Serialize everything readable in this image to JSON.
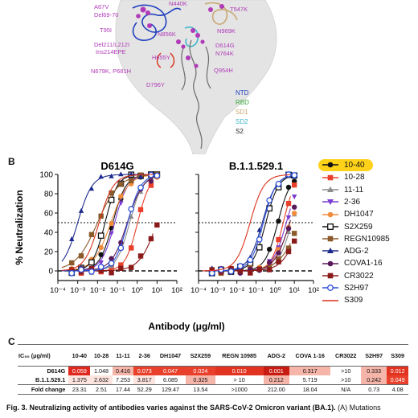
{
  "panel_a": {
    "mutations": [
      "A67V",
      "Del69-70",
      "T95I",
      "Del211/L212I",
      "Ins214EPE",
      "N679K, P681H",
      "D796Y",
      "N856K",
      "H655Y",
      "D614G",
      "N764K",
      "N969K",
      "Q954H",
      "T547K",
      "N440K"
    ],
    "domains": [
      {
        "name": "NTD",
        "color": "#1f3fbf"
      },
      {
        "name": "RBD",
        "color": "#3aa83a"
      },
      {
        "name": "SD1",
        "color": "#c9a873"
      },
      {
        "name": "SD2",
        "color": "#3fb6c8"
      },
      {
        "name": "S2",
        "color": "#222222"
      }
    ]
  },
  "panel_b_letter": "B",
  "panel_c_letter": "C",
  "chart_data": [
    {
      "type": "line",
      "title": "D614G",
      "xlabel": "Antibody (μg/ml)",
      "ylabel": "% Neutralization",
      "xscale": "log",
      "xlim": [
        0.0001,
        100
      ],
      "ylim": [
        -10,
        100
      ],
      "x_ticks": [
        "10⁻⁴",
        "10⁻³",
        "10⁻²",
        "10⁻¹",
        "10⁰",
        "10¹",
        "10²"
      ],
      "y_ticks": [
        "0",
        "20",
        "40",
        "60",
        "80",
        "100"
      ],
      "reference_lines": [
        0,
        50
      ],
      "series": [
        {
          "name": "10-40",
          "color": "#111111",
          "marker": "circle",
          "ic50": 0.059,
          "hill": 1.3
        },
        {
          "name": "10-28",
          "color": "#e8402b",
          "marker": "square",
          "ic50": 1.048,
          "hill": 1.4
        },
        {
          "name": "11-11",
          "color": "#8c8c8c",
          "marker": "triangle",
          "ic50": 0.416,
          "hill": 1.3
        },
        {
          "name": "2-36",
          "color": "#7a3bd0",
          "marker": "triangle-down",
          "ic50": 0.073,
          "hill": 1.3
        },
        {
          "name": "DH1047",
          "color": "#f08c3c",
          "marker": "circle",
          "ic50": 0.047,
          "hill": 1.0
        },
        {
          "name": "S2X259",
          "color": "#111111",
          "marker": "square-open",
          "ic50": 0.024,
          "hill": 1.4
        },
        {
          "name": "REGN10985",
          "color": "#8b5a2b",
          "marker": "square",
          "ic50": 0.01,
          "hill": 0.8
        },
        {
          "name": "ADG-2",
          "color": "#1c2a8c",
          "marker": "triangle",
          "ic50": 0.001,
          "hill": 1.2
        },
        {
          "name": "COVA1-16",
          "color": "#5a1a5a",
          "marker": "circle",
          "ic50": 0.317,
          "hill": 1.1
        },
        {
          "name": "CR3022",
          "color": "#8b1a1a",
          "marker": "square",
          "ic50": 10,
          "hill": 1.0
        },
        {
          "name": "S2H97",
          "color": "#2c4fd8",
          "marker": "circle-open",
          "ic50": 0.333,
          "hill": 1.3
        },
        {
          "name": "S309",
          "color": "#d9321c",
          "marker": "line",
          "ic50": 0.012,
          "hill": 1.2
        }
      ]
    },
    {
      "type": "line",
      "title": "B.1.1.529.1",
      "xlabel": "Antibody (μg/ml)",
      "ylabel": "% Neutralization",
      "xscale": "log",
      "xlim": [
        0.0001,
        100
      ],
      "ylim": [
        -10,
        100
      ],
      "x_ticks": [
        "10⁻⁴",
        "10⁻³",
        "10⁻²",
        "10⁻¹",
        "10⁰",
        "10¹",
        "10²"
      ],
      "y_ticks": [
        "0",
        "20",
        "40",
        "60",
        "80",
        "100"
      ],
      "reference_lines": [
        0,
        50
      ],
      "series": [
        {
          "name": "10-40",
          "color": "#111111",
          "marker": "circle",
          "ic50": 1.375,
          "hill": 1.3
        },
        {
          "name": "10-28",
          "color": "#e8402b",
          "marker": "square",
          "ic50": 2.632,
          "hill": 1.4
        },
        {
          "name": "11-11",
          "color": "#8c8c8c",
          "marker": "triangle",
          "ic50": 7.253,
          "hill": 1.2
        },
        {
          "name": "2-36",
          "color": "#7a3bd0",
          "marker": "triangle-down",
          "ic50": 3.817,
          "hill": 1.2
        },
        {
          "name": "DH1047",
          "color": "#f08c3c",
          "marker": "circle",
          "ic50": 6.085,
          "hill": 1.0
        },
        {
          "name": "S2X259",
          "color": "#111111",
          "marker": "square-open",
          "ic50": 0.325,
          "hill": 1.3
        },
        {
          "name": "REGN10985",
          "color": "#8b5a2b",
          "marker": "square",
          "ic50": 20,
          "hill": 0.8
        },
        {
          "name": "ADG-2",
          "color": "#1c2a8c",
          "marker": "triangle",
          "ic50": 0.212,
          "hill": 1.2
        },
        {
          "name": "COVA1-16",
          "color": "#5a1a5a",
          "marker": "circle",
          "ic50": 5.719,
          "hill": 1.1
        },
        {
          "name": "CR3022",
          "color": "#8b1a1a",
          "marker": "square",
          "ic50": 20,
          "hill": 1.0
        },
        {
          "name": "S2H97",
          "color": "#2c4fd8",
          "marker": "circle-open",
          "ic50": 0.242,
          "hill": 1.3
        },
        {
          "name": "S309",
          "color": "#d9321c",
          "marker": "line",
          "ic50": 0.049,
          "hill": 1.2
        }
      ]
    }
  ],
  "table": {
    "header_label": "IC₅₀ (μg/ml)",
    "columns": [
      "10-40",
      "10-28",
      "11-11",
      "2-36",
      "DH1047",
      "S2X259",
      "REGN 10985",
      "ADG-2",
      "COVA 1-16",
      "CR3022",
      "S2H97",
      "S309"
    ],
    "rows": [
      {
        "label": "D614G",
        "values": [
          "0.059",
          "1.048",
          "0.416",
          "0.073",
          "0.047",
          "0.024",
          "0.010",
          "0.001",
          "0.317",
          ">10",
          "0.333",
          "0.012"
        ],
        "colors": [
          "#e0281e",
          "#ffffff",
          "#f6b5a9",
          "#e8402b",
          "#e8402b",
          "#e8402b",
          "#e23220",
          "#c81c12",
          "#f6b5a9",
          "#ffffff",
          "#f6b5a9",
          "#e23220"
        ]
      },
      {
        "label": "B.1.1.529.1",
        "values": [
          "1.375",
          "2.632",
          "7.253",
          "3.817",
          "6.085",
          "0.325",
          "> 10",
          "0.212",
          "5.719",
          ">10",
          "0.242",
          "0.049"
        ],
        "colors": [
          "#fde4de",
          "#fde4de",
          "#ffffff",
          "#fde4de",
          "#ffffff",
          "#f6b5a9",
          "#ffffff",
          "#f6b5a9",
          "#ffffff",
          "#ffffff",
          "#f6b5a9",
          "#e8402b"
        ]
      },
      {
        "label": "Fold change",
        "values": [
          "23.31",
          "2.51",
          "17.44",
          "52.29",
          "129.47",
          "13.54",
          ">1000",
          "212.00",
          "18.04",
          "N/A",
          "0.73",
          "4.08"
        ],
        "colors": [
          "#ffffff",
          "#ffffff",
          "#ffffff",
          "#ffffff",
          "#ffffff",
          "#ffffff",
          "#ffffff",
          "#ffffff",
          "#ffffff",
          "#ffffff",
          "#ffffff",
          "#ffffff"
        ]
      }
    ]
  },
  "caption": {
    "bold": "Fig. 3. Neutralizing activity of antibodies varies against the SARS-CoV-2 Omicron variant (BA.1).",
    "rest": " (A) Mutations"
  }
}
